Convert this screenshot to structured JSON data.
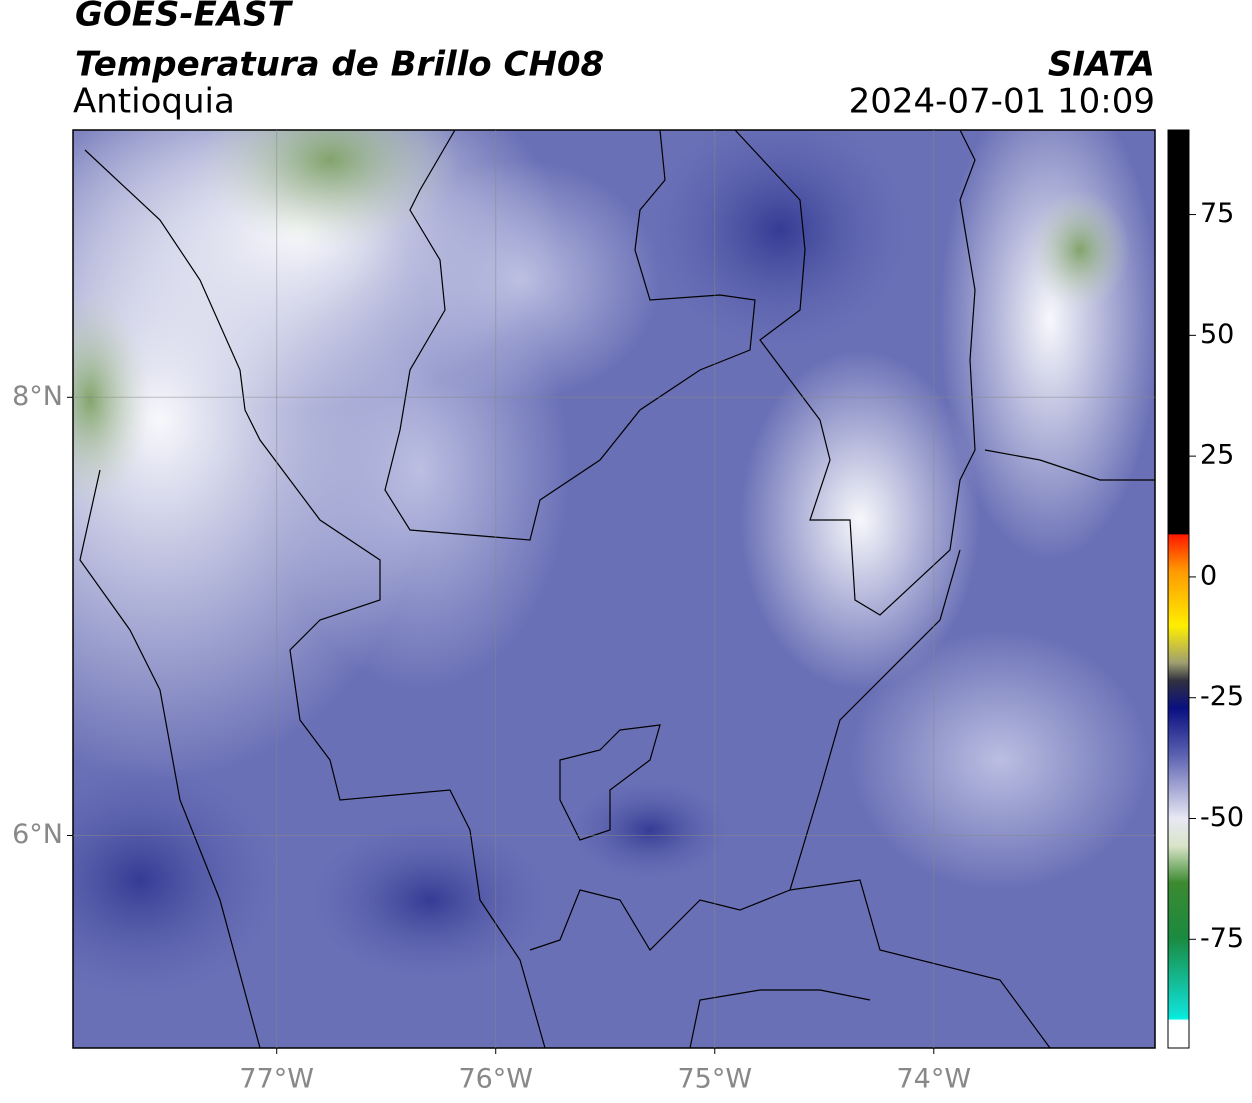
{
  "header": {
    "title": "GOES-EAST",
    "subtitle": "Temperatura de Brillo CH08",
    "region": "Antioquia",
    "source": "SIATA",
    "datetime": "2024-07-01 10:09"
  },
  "map": {
    "xlim": [
      -77.93,
      -72.99
    ],
    "ylim": [
      5.03,
      9.22
    ],
    "xticks": [
      {
        "value": -77,
        "label": "77°W"
      },
      {
        "value": -76,
        "label": "76°W"
      },
      {
        "value": -75,
        "label": "75°W"
      },
      {
        "value": -74,
        "label": "74°W"
      }
    ],
    "yticks": [
      {
        "value": 8,
        "label": "8°N"
      },
      {
        "value": 6,
        "label": "6°N"
      }
    ]
  },
  "colorbar": {
    "lim": [
      -97.5,
      92.5
    ],
    "ticks": [
      75,
      50,
      25,
      0,
      -25,
      -50,
      -75
    ]
  }
}
